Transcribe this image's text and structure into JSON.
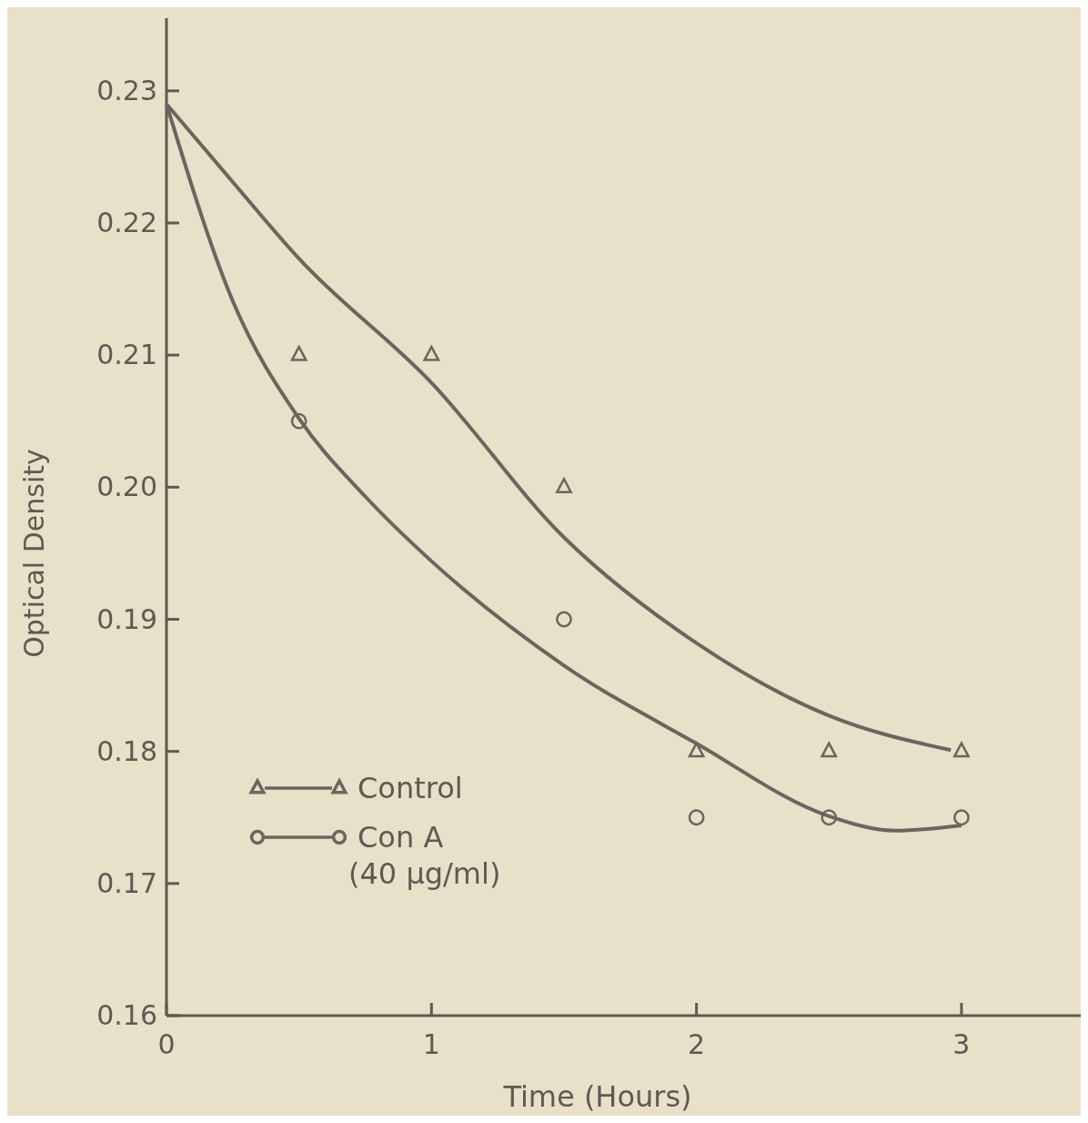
{
  "chart_data": {
    "type": "scatter",
    "xlabel": "Time (Hours)",
    "ylabel": "Optical Density",
    "xlim": [
      0,
      3.45
    ],
    "ylim": [
      0.16,
      0.2355
    ],
    "xticks": [
      0,
      1,
      2,
      3
    ],
    "yticks": [
      {
        "value": 0.16,
        "label": "0.16"
      },
      {
        "value": 0.17,
        "label": "0.17"
      },
      {
        "value": 0.18,
        "label": "0.18"
      },
      {
        "value": 0.19,
        "label": "0.19"
      },
      {
        "value": 0.2,
        "label": "0.20"
      },
      {
        "value": 0.21,
        "label": "0.21"
      },
      {
        "value": 0.22,
        "label": "0.22"
      },
      {
        "value": 0.23,
        "label": "0.23"
      }
    ],
    "grid": false,
    "legend": "bottom left",
    "series": [
      {
        "name": "Control",
        "marker": "triangle",
        "color": "#6a665e",
        "x": [
          0.5,
          1,
          1.5,
          2,
          2.5,
          3
        ],
        "values": [
          0.21,
          0.21,
          0.2,
          0.18,
          0.18,
          0.18
        ]
      },
      {
        "name": "Con A (40 μg/ml)",
        "marker": "circle",
        "color": "#6a665e",
        "x": [
          0.5,
          1.5,
          2,
          2.5,
          3
        ],
        "values": [
          0.205,
          0.19,
          0.175,
          0.175,
          0.175
        ]
      },
      {
        "type": "line",
        "marker": "none",
        "color": "#6a665e",
        "x": [
          0,
          0.25,
          0.5,
          1,
          1.5,
          2,
          2.5,
          2.96
        ],
        "values": [
          0.229,
          0.2231,
          0.2173,
          0.2079,
          0.1962,
          0.1882,
          0.1827,
          0.1801
        ]
      },
      {
        "type": "line",
        "marker": "none",
        "color": "#6a665e",
        "x": [
          0,
          0.25,
          0.5,
          0.75,
          1,
          1.5,
          2,
          2.5,
          2.75,
          3
        ],
        "values": [
          0.229,
          0.2141,
          0.2052,
          0.1993,
          0.1944,
          0.1865,
          0.1806,
          0.1751,
          0.174,
          0.1744
        ]
      }
    ]
  }
}
